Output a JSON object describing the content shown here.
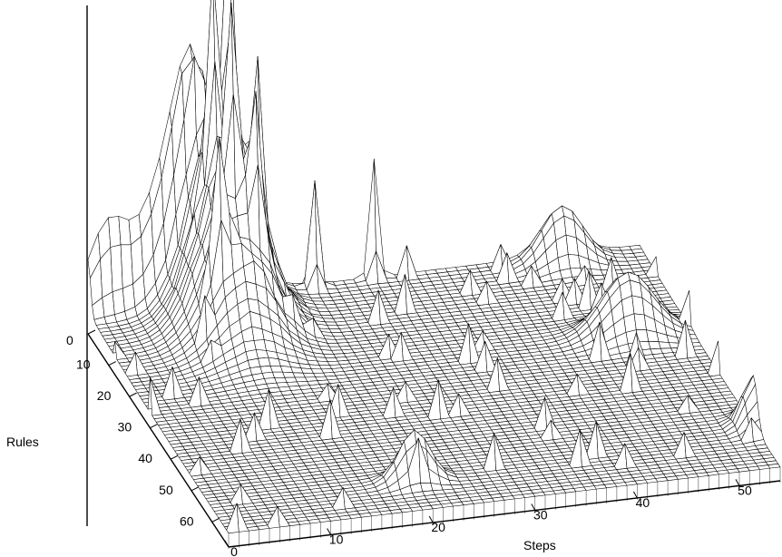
{
  "chart_data": {
    "type": "surface3d",
    "title": "",
    "xlabel": "Steps",
    "ylabel": "Rules",
    "zlabel": "",
    "x_ticks": [
      0,
      10,
      20,
      30,
      40,
      50
    ],
    "y_ticks": [
      0,
      10,
      20,
      30,
      40,
      50,
      60
    ],
    "xlim": [
      0,
      54
    ],
    "ylim": [
      0,
      68
    ],
    "grid_size": {
      "steps": 55,
      "rules": 69
    },
    "baseline_height": 0.08,
    "peaks": [
      {
        "step": 2,
        "rule": 0,
        "height": 0.3,
        "spread_step": 2.0,
        "spread_rule": 1.2
      },
      {
        "step": 8,
        "rule": 0,
        "height": 0.42,
        "spread_step": 2.5,
        "spread_rule": 1.5
      },
      {
        "step": 10,
        "rule": 1,
        "height": 0.35,
        "spread_step": 1.5,
        "spread_rule": 2.0
      },
      {
        "step": 12,
        "rule": 8,
        "height": 0.55,
        "spread_step": 3.0,
        "spread_rule": 7.0
      },
      {
        "step": 13,
        "rule": 4,
        "height": 1.0,
        "spread_step": 0.5,
        "spread_rule": 0.8
      },
      {
        "step": 12,
        "rule": 10,
        "height": 0.55,
        "spread_step": 0.5,
        "spread_rule": 0.8
      },
      {
        "step": 14,
        "rule": 12,
        "height": 0.48,
        "spread_step": 0.5,
        "spread_rule": 0.8
      },
      {
        "step": 10,
        "rule": 14,
        "height": 0.42,
        "spread_step": 0.5,
        "spread_rule": 0.8
      },
      {
        "step": 15,
        "rule": 8,
        "height": 0.52,
        "spread_step": 0.5,
        "spread_rule": 0.8
      },
      {
        "step": 11,
        "rule": 6,
        "height": 0.62,
        "spread_step": 0.5,
        "spread_rule": 0.8
      },
      {
        "step": 14,
        "rule": 2,
        "height": 0.45,
        "spread_step": 0.5,
        "spread_rule": 0.8
      },
      {
        "step": 22,
        "rule": 1,
        "height": 0.38,
        "spread_step": 0.4,
        "spread_rule": 0.6
      },
      {
        "step": 28,
        "rule": 0,
        "height": 0.42,
        "spread_step": 0.4,
        "spread_rule": 0.6
      },
      {
        "step": 46,
        "rule": 2,
        "height": 0.2,
        "spread_step": 2.0,
        "spread_rule": 2.0
      },
      {
        "step": 48,
        "rule": 24,
        "height": 0.22,
        "spread_step": 2.5,
        "spread_rule": 2.5
      },
      {
        "step": 20,
        "rule": 59,
        "height": 0.18,
        "spread_step": 1.5,
        "spread_rule": 1.5
      },
      {
        "step": 54,
        "rule": 55,
        "height": 0.18,
        "spread_step": 1.0,
        "spread_rule": 2.0
      }
    ]
  }
}
